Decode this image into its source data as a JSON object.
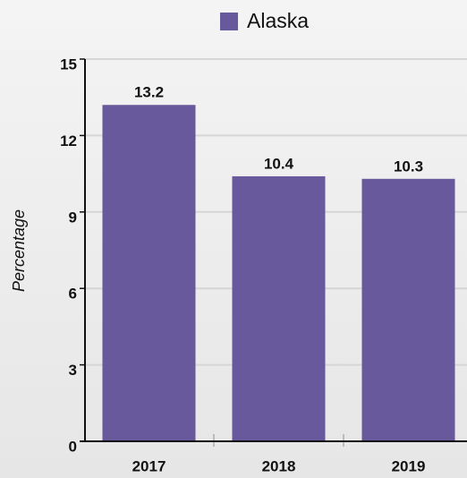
{
  "chart_data": {
    "type": "bar",
    "categories": [
      "2017",
      "2018",
      "2019"
    ],
    "series": [
      {
        "name": "Alaska",
        "color": "#68589c",
        "values": [
          13.2,
          10.4,
          10.3
        ]
      }
    ],
    "y_label": "Percentage",
    "ylim": [
      0,
      15
    ],
    "yticks": [
      0,
      3,
      6,
      9,
      12,
      15
    ],
    "grid": true,
    "legend": "top"
  }
}
